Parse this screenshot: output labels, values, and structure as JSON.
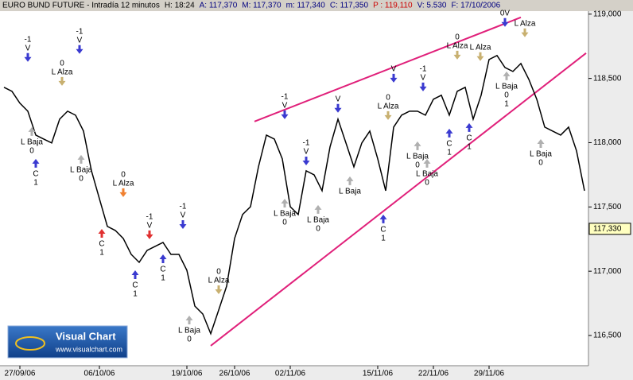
{
  "chart_data": {
    "type": "line",
    "header": [
      {
        "text": "EURO BUND FUTURE - Intradía 12 minutos",
        "color": "#000000"
      },
      {
        "text": "H: 18:24",
        "color": "#000000"
      },
      {
        "text": "A: 117,370",
        "color": "#000080"
      },
      {
        "text": "M: 117,370",
        "color": "#000080"
      },
      {
        "text": "m: 117,340",
        "color": "#000080"
      },
      {
        "text": "C: 117,350",
        "color": "#000080"
      },
      {
        "text": "P : 119,110",
        "color": "#cc0000"
      },
      {
        "text": "V: 5.530",
        "color": "#000080"
      },
      {
        "text": "F: 17/10/2006",
        "color": "#000080"
      }
    ],
    "categories": [
      null,
      null,
      "27/09/06",
      null,
      null,
      null,
      null,
      null,
      null,
      null,
      null,
      null,
      "06/10/06",
      null,
      null,
      null,
      null,
      null,
      null,
      null,
      null,
      null,
      null,
      "19/10/06",
      null,
      null,
      null,
      null,
      null,
      "26/10/06",
      null,
      null,
      null,
      null,
      null,
      null,
      "02/11/06",
      null,
      null,
      null,
      null,
      null,
      null,
      null,
      null,
      null,
      null,
      "15/11/06",
      null,
      null,
      null,
      null,
      null,
      null,
      "22/11/06",
      null,
      null,
      null,
      null,
      null,
      null,
      "29/11/06",
      null,
      null,
      null,
      null,
      null,
      null,
      null,
      null,
      null,
      null,
      null,
      null
    ],
    "series": [
      {
        "name": "EURO BUND FUTURE",
        "color": "#000000",
        "values": [
          118431,
          118400,
          118307,
          118245,
          118059,
          118028,
          117998,
          118183,
          118245,
          118214,
          118090,
          117781,
          117564,
          117349,
          117317,
          117255,
          117131,
          117069,
          117162,
          117193,
          117224,
          117131,
          117131,
          117007,
          116729,
          116667,
          116514,
          116698,
          116884,
          117255,
          117441,
          117502,
          117812,
          118059,
          118028,
          117874,
          117502,
          117441,
          117781,
          117750,
          117626,
          117967,
          118183,
          117998,
          117812,
          117998,
          118090,
          117874,
          117626,
          118121,
          118214,
          118245,
          118245,
          118214,
          118338,
          118369,
          118214,
          118400,
          118431,
          118183,
          118369,
          118647,
          118678,
          118585,
          118554,
          118616,
          118493,
          118338,
          118121,
          118090,
          118059,
          118121,
          117936,
          117626
        ]
      }
    ],
    "ylim": [
      116265,
      119110
    ],
    "yticks": [
      {
        "value": 116500,
        "label": "116,500"
      },
      {
        "value": 117000,
        "label": "117,000"
      },
      {
        "value": 117500,
        "label": "117,500"
      },
      {
        "value": 118000,
        "label": "118,000"
      },
      {
        "value": 118500,
        "label": "118,500"
      },
      {
        "value": 119000,
        "label": "119,000"
      }
    ],
    "grid": false,
    "last_price": {
      "value": 117330,
      "label": "117,330"
    },
    "trendlines": [
      {
        "start": [
          31.5,
          118165
        ],
        "end": [
          65,
          118975
        ],
        "color": "#e0207a"
      },
      {
        "start": [
          26,
          116420
        ],
        "end": [
          73.2,
          118697
        ],
        "color": "#e0207a"
      }
    ],
    "annotations": [
      {
        "index": 3,
        "value": 118833,
        "text": [
          "-1",
          "V"
        ],
        "arrow": "down",
        "color": "#3a3ad0"
      },
      {
        "index": 7.3,
        "value": 118647,
        "text": [
          "0",
          "L Alza"
        ],
        "arrow": "down",
        "color": "#c8b070"
      },
      {
        "index": 9.5,
        "value": 118895,
        "text": [
          "-1",
          "V"
        ],
        "arrow": "down",
        "color": "#3a3ad0"
      },
      {
        "index": 3.5,
        "value": 118121,
        "text": [
          "L Baja",
          "0"
        ],
        "arrow": "up",
        "color": "#b0b0b0"
      },
      {
        "index": 4,
        "value": 117874,
        "text": [
          "C",
          "1"
        ],
        "arrow": "up",
        "color": "#3a3ad0"
      },
      {
        "index": 9.7,
        "value": 117905,
        "text": [
          "L Baja",
          "0"
        ],
        "arrow": "up",
        "color": "#b0b0b0"
      },
      {
        "index": 15,
        "value": 117781,
        "text": [
          "0",
          "L Alza"
        ],
        "arrow": "down",
        "color": "#f08030"
      },
      {
        "index": 12.3,
        "value": 117329,
        "text": [
          "C",
          "1"
        ],
        "arrow": "up",
        "color": "#e03030"
      },
      {
        "index": 18.3,
        "value": 117453,
        "text": [
          "-1",
          "V"
        ],
        "arrow": "down",
        "color": "#e03030"
      },
      {
        "index": 22.5,
        "value": 117533,
        "text": [
          "-1",
          "V"
        ],
        "arrow": "down",
        "color": "#3a3ad0"
      },
      {
        "index": 16.5,
        "value": 117007,
        "text": [
          "C",
          "1"
        ],
        "arrow": "up",
        "color": "#3a3ad0"
      },
      {
        "index": 20,
        "value": 117131,
        "text": [
          "C",
          "1"
        ],
        "arrow": "up",
        "color": "#3a3ad0"
      },
      {
        "index": 23.3,
        "value": 116655,
        "text": [
          "L Baja",
          "0"
        ],
        "arrow": "up",
        "color": "#b0b0b0"
      },
      {
        "index": 27,
        "value": 117026,
        "text": [
          "0",
          "L Alza"
        ],
        "arrow": "down",
        "color": "#c8b070"
      },
      {
        "index": 35.3,
        "value": 118387,
        "text": [
          "-1",
          "V"
        ],
        "arrow": "down",
        "color": "#3a3ad0"
      },
      {
        "index": 35.3,
        "value": 117564,
        "text": [
          "L Baja",
          "0"
        ],
        "arrow": "up",
        "color": "#b0b0b0"
      },
      {
        "index": 38,
        "value": 118028,
        "text": [
          "-1",
          "V"
        ],
        "arrow": "down",
        "color": "#3a3ad0"
      },
      {
        "index": 39.5,
        "value": 117515,
        "text": [
          "L Baja",
          "0"
        ],
        "arrow": "up",
        "color": "#b0b0b0"
      },
      {
        "index": 42,
        "value": 118369,
        "text": [
          "V"
        ],
        "arrow": "down",
        "color": "#3a3ad0"
      },
      {
        "index": 43.5,
        "value": 117738,
        "text": [
          "L Baja"
        ],
        "arrow": "up",
        "color": "#b0b0b0"
      },
      {
        "index": 48.3,
        "value": 118381,
        "text": [
          "0",
          "L Alza"
        ],
        "arrow": "down",
        "color": "#c8b070"
      },
      {
        "index": 47.7,
        "value": 117441,
        "text": [
          "C",
          "1"
        ],
        "arrow": "up",
        "color": "#3a3ad0"
      },
      {
        "index": 49,
        "value": 118604,
        "text": [
          "V"
        ],
        "arrow": "down",
        "color": "#3a3ad0"
      },
      {
        "index": 52,
        "value": 118010,
        "text": [
          "L Baja",
          "0"
        ],
        "arrow": "up",
        "color": "#b0b0b0"
      },
      {
        "index": 53.2,
        "value": 117874,
        "text": [
          "L Baja",
          "0"
        ],
        "arrow": "up",
        "color": "#b0b0b0"
      },
      {
        "index": 52.7,
        "value": 118604,
        "text": [
          "-1",
          "V"
        ],
        "arrow": "down",
        "color": "#3a3ad0"
      },
      {
        "index": 56,
        "value": 118109,
        "text": [
          "C",
          "1"
        ],
        "arrow": "up",
        "color": "#3a3ad0"
      },
      {
        "index": 57,
        "value": 118851,
        "text": [
          "0",
          "L Alza"
        ],
        "arrow": "down",
        "color": "#c8b070"
      },
      {
        "index": 58.5,
        "value": 118152,
        "text": [
          "C",
          "1"
        ],
        "arrow": "up",
        "color": "#3a3ad0"
      },
      {
        "index": 59.9,
        "value": 118771,
        "text": [
          "L Alza"
        ],
        "arrow": "down",
        "color": "#c8b070"
      },
      {
        "index": 63,
        "value": 119037,
        "text": [
          "0V"
        ],
        "arrow": "down",
        "color": "#3a3ad0"
      },
      {
        "index": 65.5,
        "value": 118957,
        "text": [
          "L Alza"
        ],
        "arrow": "down",
        "color": "#c8b070"
      },
      {
        "index": 63.2,
        "value": 118554,
        "text": [
          "L Baja",
          "0",
          "1"
        ],
        "arrow": "up",
        "color": "#b0b0b0"
      },
      {
        "index": 67.5,
        "value": 118028,
        "text": [
          "L Baja",
          "0"
        ],
        "arrow": "up",
        "color": "#b0b0b0"
      }
    ],
    "logo": {
      "title": "Visual Chart",
      "url": "www.visualchart.com"
    }
  }
}
